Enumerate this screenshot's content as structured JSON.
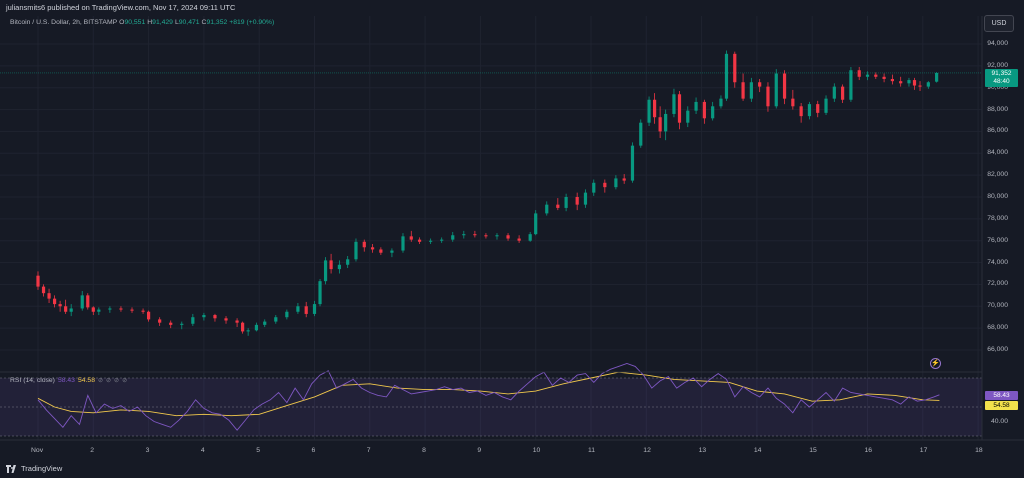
{
  "header": {
    "published": "juliansmits6 published on TradingView.com, Nov 17, 2024 09:11 UTC"
  },
  "legend": {
    "symbol": "Bitcoin / U.S. Dollar, 2h, BITSTAMP",
    "open_label": "O",
    "open": "90,551",
    "high_label": "H",
    "high": "91,429",
    "low_label": "L",
    "low": "90,471",
    "close_label": "C",
    "close": "91,352",
    "change": "+819 (+0.90%)"
  },
  "currency_button": "USD",
  "price_axis": {
    "labels": [
      "94,000",
      "92,000",
      "90,000",
      "88,000",
      "86,000",
      "84,000",
      "82,000",
      "80,000",
      "78,000",
      "76,000",
      "74,000",
      "72,000",
      "70,000",
      "68,000",
      "66,000"
    ],
    "last_price": "91,352",
    "countdown": "48:40"
  },
  "rsi": {
    "label": "RSI (14, close)",
    "value": "58.43",
    "ma_value": "54.58",
    "axis_label": "40.00",
    "tag_value": "58.43",
    "tag_ma": "54.58"
  },
  "time_axis": {
    "labels": [
      "Nov",
      "2",
      "3",
      "4",
      "5",
      "6",
      "7",
      "8",
      "9",
      "10",
      "11",
      "12",
      "13",
      "14",
      "15",
      "16",
      "17",
      "18"
    ]
  },
  "footer": {
    "brand": "TradingView"
  },
  "colors": {
    "up": "#089981",
    "down": "#f23645",
    "rsi": "#7e57c2",
    "rsi_ma": "#f2c94c",
    "bg": "#161a25"
  },
  "chart_data": {
    "type": "candlestick",
    "price_ylim": [
      65000,
      95500
    ],
    "x_unit": "days (Nov 1 = 1)",
    "candles": [
      [
        1.0,
        72800,
        73200,
        71500,
        71800
      ],
      [
        1.1,
        71800,
        72000,
        70900,
        71200
      ],
      [
        1.2,
        71200,
        71600,
        70300,
        70700
      ],
      [
        1.3,
        70700,
        71000,
        69900,
        70200
      ],
      [
        1.4,
        70200,
        70500,
        69500,
        70000
      ],
      [
        1.5,
        70000,
        70600,
        69300,
        69500
      ],
      [
        1.6,
        69500,
        70200,
        69100,
        69800
      ],
      [
        1.8,
        69800,
        71400,
        69600,
        71000
      ],
      [
        1.9,
        71000,
        71200,
        69700,
        69900
      ],
      [
        2.0,
        69900,
        70000,
        69200,
        69500
      ],
      [
        2.1,
        69500,
        69900,
        69200,
        69700
      ],
      [
        2.3,
        69700,
        70000,
        69400,
        69800
      ],
      [
        2.5,
        69800,
        70000,
        69500,
        69700
      ],
      [
        2.7,
        69700,
        69900,
        69400,
        69600
      ],
      [
        2.9,
        69600,
        69800,
        69300,
        69500
      ],
      [
        3.0,
        69500,
        69600,
        68600,
        68800
      ],
      [
        3.2,
        68800,
        69000,
        68200,
        68500
      ],
      [
        3.4,
        68500,
        68700,
        68000,
        68300
      ],
      [
        3.6,
        68300,
        68600,
        67900,
        68400
      ],
      [
        3.8,
        68400,
        69300,
        68200,
        69000
      ],
      [
        4.0,
        69000,
        69400,
        68700,
        69200
      ],
      [
        4.2,
        69200,
        69300,
        68600,
        68900
      ],
      [
        4.4,
        68900,
        69100,
        68400,
        68700
      ],
      [
        4.6,
        68700,
        68900,
        68100,
        68500
      ],
      [
        4.7,
        68500,
        68600,
        67500,
        67700
      ],
      [
        4.8,
        67700,
        68000,
        67300,
        67800
      ],
      [
        4.95,
        67800,
        68500,
        67700,
        68300
      ],
      [
        5.1,
        68300,
        68800,
        68100,
        68600
      ],
      [
        5.3,
        68600,
        69200,
        68400,
        69000
      ],
      [
        5.5,
        69000,
        69700,
        68800,
        69500
      ],
      [
        5.7,
        69500,
        70300,
        69300,
        70000
      ],
      [
        5.85,
        70000,
        70400,
        69000,
        69300
      ],
      [
        6.0,
        69300,
        70500,
        69100,
        70200
      ],
      [
        6.1,
        70200,
        72500,
        70000,
        72300
      ],
      [
        6.2,
        72300,
        74500,
        72000,
        74200
      ],
      [
        6.3,
        74200,
        74800,
        73000,
        73400
      ],
      [
        6.45,
        73400,
        74200,
        73000,
        73800
      ],
      [
        6.6,
        73800,
        74600,
        73500,
        74300
      ],
      [
        6.75,
        74300,
        76200,
        74100,
        75900
      ],
      [
        6.9,
        75900,
        76100,
        75000,
        75400
      ],
      [
        7.05,
        75400,
        75700,
        74900,
        75200
      ],
      [
        7.2,
        75200,
        75400,
        74700,
        74900
      ],
      [
        7.4,
        74900,
        75300,
        74500,
        75100
      ],
      [
        7.6,
        75100,
        76700,
        74900,
        76400
      ],
      [
        7.75,
        76400,
        76900,
        75900,
        76100
      ],
      [
        7.9,
        76100,
        76300,
        75700,
        75900
      ],
      [
        8.1,
        75900,
        76200,
        75700,
        76000
      ],
      [
        8.3,
        76000,
        76300,
        75800,
        76100
      ],
      [
        8.5,
        76100,
        76800,
        75900,
        76500
      ],
      [
        8.7,
        76500,
        76900,
        76200,
        76600
      ],
      [
        8.9,
        76600,
        76900,
        76300,
        76500
      ],
      [
        9.1,
        76500,
        76700,
        76200,
        76400
      ],
      [
        9.3,
        76400,
        76700,
        76100,
        76500
      ],
      [
        9.5,
        76500,
        76700,
        76000,
        76200
      ],
      [
        9.7,
        76200,
        76500,
        75800,
        76000
      ],
      [
        9.9,
        76000,
        76800,
        75900,
        76600
      ],
      [
        10.0,
        76600,
        78800,
        76500,
        78500
      ],
      [
        10.2,
        78500,
        79600,
        78300,
        79300
      ],
      [
        10.4,
        79300,
        79900,
        78800,
        79000
      ],
      [
        10.55,
        79000,
        80300,
        78700,
        80000
      ],
      [
        10.75,
        80000,
        80400,
        78800,
        79300
      ],
      [
        10.9,
        79300,
        80700,
        79000,
        80400
      ],
      [
        11.05,
        80400,
        81600,
        80100,
        81300
      ],
      [
        11.25,
        81300,
        81600,
        80400,
        80900
      ],
      [
        11.45,
        80900,
        82000,
        80700,
        81700
      ],
      [
        11.6,
        81700,
        82100,
        81200,
        81500
      ],
      [
        11.75,
        81500,
        85000,
        81300,
        84700
      ],
      [
        11.9,
        84700,
        87100,
        84500,
        86800
      ],
      [
        12.05,
        86800,
        89200,
        86500,
        88900
      ],
      [
        12.15,
        88900,
        89500,
        86700,
        87300
      ],
      [
        12.25,
        87300,
        88300,
        85400,
        86000
      ],
      [
        12.35,
        86000,
        88000,
        85200,
        87600
      ],
      [
        12.5,
        87600,
        89900,
        87300,
        89400
      ],
      [
        12.6,
        89400,
        89700,
        86200,
        86800
      ],
      [
        12.75,
        86800,
        88300,
        86400,
        87900
      ],
      [
        12.9,
        87900,
        89100,
        87600,
        88700
      ],
      [
        13.05,
        88700,
        88900,
        86700,
        87200
      ],
      [
        13.2,
        87200,
        88700,
        87000,
        88300
      ],
      [
        13.35,
        88300,
        89300,
        88100,
        89000
      ],
      [
        13.45,
        89000,
        93400,
        88800,
        93100
      ],
      [
        13.6,
        93100,
        93300,
        90000,
        90500
      ],
      [
        13.75,
        90500,
        91300,
        88800,
        89000
      ],
      [
        13.9,
        89000,
        90900,
        88700,
        90500
      ],
      [
        14.05,
        90500,
        90800,
        89600,
        90100
      ],
      [
        14.2,
        90100,
        90500,
        87800,
        88300
      ],
      [
        14.35,
        88300,
        91700,
        88100,
        91300
      ],
      [
        14.5,
        91300,
        91600,
        88500,
        89000
      ],
      [
        14.65,
        89000,
        89800,
        88000,
        88300
      ],
      [
        14.8,
        88300,
        88600,
        86800,
        87400
      ],
      [
        14.95,
        87400,
        88700,
        87100,
        88500
      ],
      [
        15.1,
        88500,
        88800,
        87300,
        87700
      ],
      [
        15.25,
        87700,
        89300,
        87500,
        89000
      ],
      [
        15.4,
        89000,
        90400,
        88700,
        90100
      ],
      [
        15.55,
        90100,
        90300,
        88600,
        88900
      ],
      [
        15.7,
        88900,
        91900,
        88700,
        91600
      ],
      [
        15.85,
        91600,
        91900,
        90700,
        91000
      ],
      [
        16.0,
        91000,
        91500,
        90700,
        91200
      ],
      [
        16.15,
        91200,
        91400,
        90800,
        91000
      ],
      [
        16.3,
        91000,
        91300,
        90500,
        90800
      ],
      [
        16.45,
        90800,
        91200,
        90300,
        90600
      ],
      [
        16.6,
        90600,
        91000,
        90100,
        90400
      ],
      [
        16.75,
        90400,
        90900,
        90100,
        90700
      ],
      [
        16.85,
        90700,
        90900,
        89800,
        90200
      ],
      [
        16.95,
        90200,
        90600,
        89700,
        90100
      ],
      [
        17.1,
        90100,
        90600,
        89900,
        90500
      ],
      [
        17.25,
        90551,
        91429,
        90471,
        91352
      ]
    ],
    "rsi_ylim": [
      28,
      72
    ],
    "rsi_bands": [
      70,
      50,
      30
    ],
    "rsi_series": [
      [
        1.0,
        55
      ],
      [
        1.15,
        48
      ],
      [
        1.3,
        42
      ],
      [
        1.45,
        36
      ],
      [
        1.6,
        44
      ],
      [
        1.75,
        38
      ],
      [
        1.9,
        58
      ],
      [
        2.05,
        46
      ],
      [
        2.2,
        52
      ],
      [
        2.35,
        49
      ],
      [
        2.5,
        51
      ],
      [
        2.65,
        47
      ],
      [
        2.8,
        50
      ],
      [
        2.95,
        44
      ],
      [
        3.1,
        40
      ],
      [
        3.25,
        38
      ],
      [
        3.4,
        36
      ],
      [
        3.55,
        41
      ],
      [
        3.7,
        47
      ],
      [
        3.85,
        55
      ],
      [
        4.0,
        49
      ],
      [
        4.15,
        46
      ],
      [
        4.3,
        45
      ],
      [
        4.45,
        41
      ],
      [
        4.6,
        34
      ],
      [
        4.75,
        41
      ],
      [
        4.9,
        48
      ],
      [
        5.05,
        52
      ],
      [
        5.2,
        55
      ],
      [
        5.35,
        60
      ],
      [
        5.5,
        53
      ],
      [
        5.65,
        63
      ],
      [
        5.8,
        55
      ],
      [
        5.95,
        66
      ],
      [
        6.1,
        72
      ],
      [
        6.25,
        75
      ],
      [
        6.4,
        63
      ],
      [
        6.55,
        66
      ],
      [
        6.7,
        69
      ],
      [
        6.85,
        63
      ],
      [
        7.0,
        60
      ],
      [
        7.15,
        58
      ],
      [
        7.3,
        57
      ],
      [
        7.45,
        65
      ],
      [
        7.6,
        62
      ],
      [
        7.75,
        59
      ],
      [
        7.9,
        60
      ],
      [
        8.05,
        61
      ],
      [
        8.2,
        62
      ],
      [
        8.35,
        64
      ],
      [
        8.5,
        62
      ],
      [
        8.65,
        63
      ],
      [
        8.8,
        60
      ],
      [
        8.95,
        61
      ],
      [
        9.1,
        58
      ],
      [
        9.25,
        60
      ],
      [
        9.4,
        57
      ],
      [
        9.55,
        55
      ],
      [
        9.7,
        61
      ],
      [
        9.85,
        66
      ],
      [
        10.0,
        71
      ],
      [
        10.15,
        74
      ],
      [
        10.3,
        65
      ],
      [
        10.45,
        70
      ],
      [
        10.6,
        67
      ],
      [
        10.75,
        72
      ],
      [
        10.9,
        73
      ],
      [
        11.05,
        67
      ],
      [
        11.2,
        73
      ],
      [
        11.35,
        76
      ],
      [
        11.5,
        78
      ],
      [
        11.65,
        80
      ],
      [
        11.8,
        78
      ],
      [
        11.95,
        72
      ],
      [
        12.1,
        63
      ],
      [
        12.25,
        68
      ],
      [
        12.4,
        71
      ],
      [
        12.55,
        63
      ],
      [
        12.7,
        67
      ],
      [
        12.85,
        70
      ],
      [
        13.0,
        64
      ],
      [
        13.15,
        69
      ],
      [
        13.3,
        73
      ],
      [
        13.45,
        69
      ],
      [
        13.6,
        57
      ],
      [
        13.75,
        64
      ],
      [
        13.9,
        60
      ],
      [
        14.05,
        57
      ],
      [
        14.2,
        63
      ],
      [
        14.35,
        56
      ],
      [
        14.5,
        52
      ],
      [
        14.65,
        46
      ],
      [
        14.8,
        55
      ],
      [
        14.95,
        50
      ],
      [
        15.1,
        55
      ],
      [
        15.25,
        60
      ],
      [
        15.4,
        54
      ],
      [
        15.55,
        63
      ],
      [
        15.7,
        60
      ],
      [
        15.85,
        59
      ],
      [
        16.0,
        58
      ],
      [
        16.15,
        57
      ],
      [
        16.3,
        56
      ],
      [
        16.45,
        55
      ],
      [
        16.6,
        52
      ],
      [
        16.75,
        57
      ],
      [
        16.9,
        54
      ],
      [
        17.05,
        55
      ],
      [
        17.2,
        57
      ],
      [
        17.3,
        58.43
      ]
    ],
    "rsi_ma_series": [
      [
        1.0,
        56
      ],
      [
        1.3,
        50
      ],
      [
        1.6,
        47
      ],
      [
        2.0,
        46
      ],
      [
        2.5,
        48
      ],
      [
        3.0,
        47
      ],
      [
        3.5,
        44
      ],
      [
        4.0,
        45
      ],
      [
        4.5,
        44
      ],
      [
        5.0,
        45
      ],
      [
        5.5,
        51
      ],
      [
        6.0,
        57
      ],
      [
        6.5,
        65
      ],
      [
        7.0,
        66
      ],
      [
        7.5,
        63
      ],
      [
        8.0,
        62
      ],
      [
        8.5,
        62
      ],
      [
        9.0,
        61
      ],
      [
        9.5,
        59
      ],
      [
        10.0,
        61
      ],
      [
        10.5,
        66
      ],
      [
        11.0,
        70
      ],
      [
        11.5,
        74
      ],
      [
        12.0,
        72
      ],
      [
        12.5,
        69
      ],
      [
        13.0,
        68
      ],
      [
        13.5,
        67
      ],
      [
        14.0,
        61
      ],
      [
        14.5,
        59
      ],
      [
        15.0,
        54
      ],
      [
        15.5,
        55
      ],
      [
        16.0,
        59
      ],
      [
        16.5,
        58
      ],
      [
        17.0,
        55
      ],
      [
        17.3,
        54.58
      ]
    ]
  }
}
